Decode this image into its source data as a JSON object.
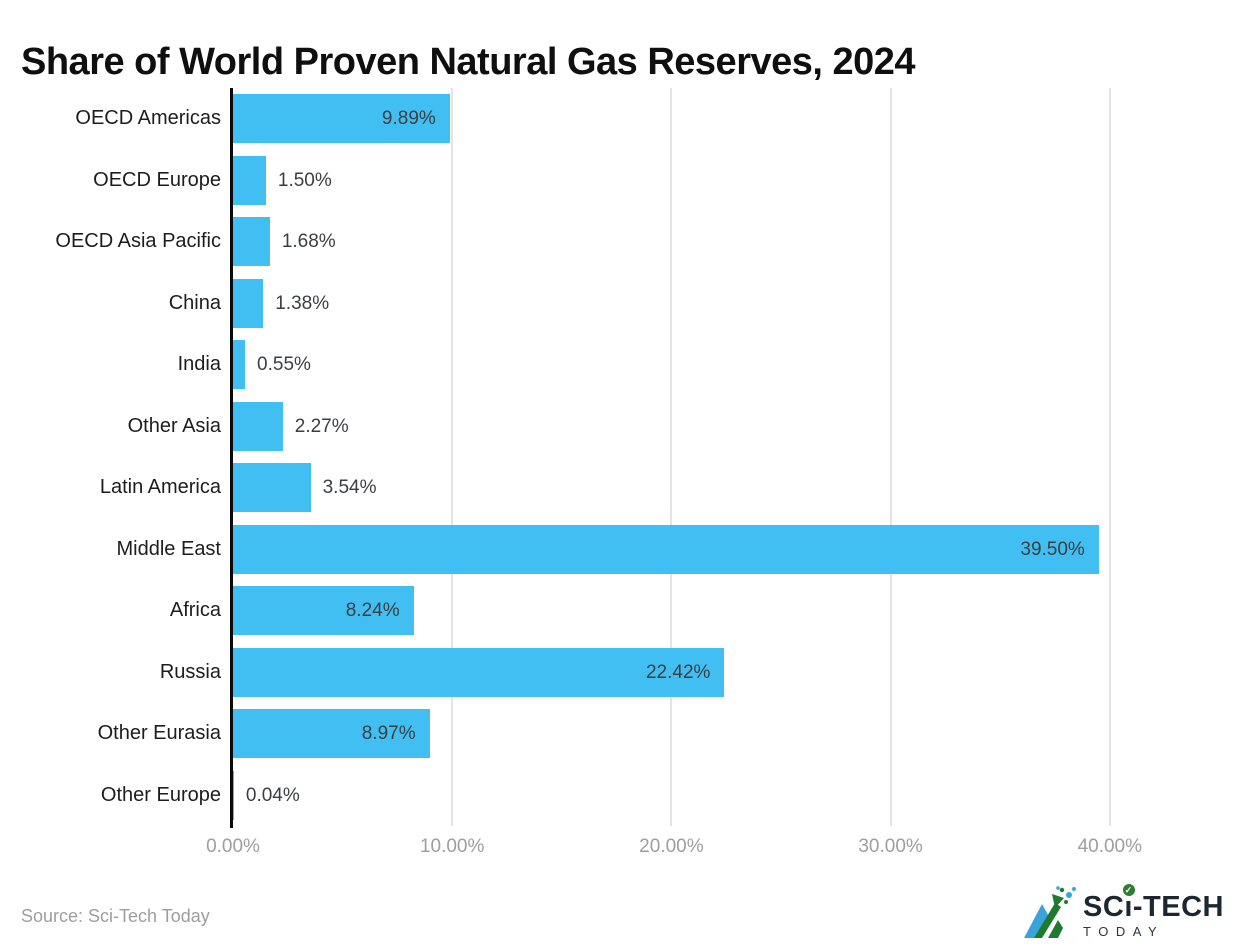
{
  "title": "Share of World Proven Natural Gas Reserves, 2024",
  "source": "Source: Sci-Tech Today",
  "chart_data": {
    "type": "bar",
    "orientation": "horizontal",
    "title": "Share of World Proven Natural Gas Reserves, 2024",
    "categories": [
      "OECD Americas",
      "OECD Europe",
      "OECD Asia Pacific",
      "China",
      "India",
      "Other Asia",
      "Latin America",
      "Middle East",
      "Africa",
      "Russia",
      "Other Eurasia",
      "Other Europe"
    ],
    "values": [
      9.89,
      1.5,
      1.68,
      1.38,
      0.55,
      2.27,
      3.54,
      39.5,
      8.24,
      22.42,
      8.97,
      0.04
    ],
    "value_labels": [
      "9.89%",
      "1.50%",
      "1.68%",
      "1.38%",
      "0.55%",
      "2.27%",
      "3.54%",
      "39.50%",
      "8.24%",
      "22.42%",
      "8.97%",
      "0.04%"
    ],
    "xlabel": "",
    "ylabel": "",
    "xlim": [
      0,
      41.4
    ],
    "x_ticks": {
      "values": [
        0,
        10,
        20,
        30,
        40
      ],
      "labels": [
        "0.00%",
        "10.00%",
        "20.00%",
        "30.00%",
        "40.00%"
      ]
    },
    "grid": "vertical-gridlines-on",
    "legend": "none",
    "bar_color": "#41BEF2",
    "axis_color": "#0a0a0a",
    "gridline_color": "#e4e4e4",
    "tick_label_color": "#9e9e9e",
    "value_label_color": "#3a3f42"
  },
  "logo": {
    "brand_left": "SC",
    "brand_i": "ı",
    "brand_right": "-TECH",
    "brand_bottom": "TODAY",
    "check_glyph": "✓",
    "icon_blue": "#3aa3db",
    "icon_green": "#1e7a2e"
  }
}
